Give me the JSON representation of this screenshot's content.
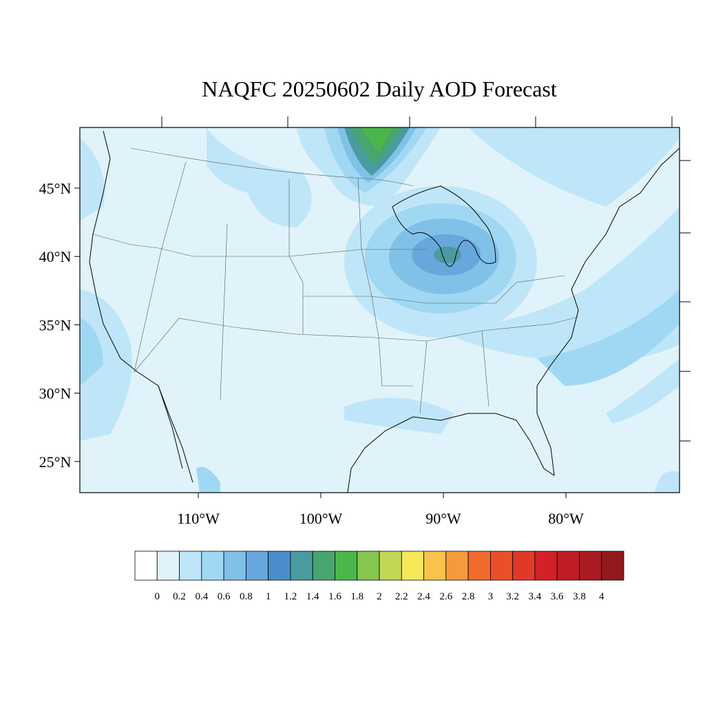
{
  "title": "NAQFC 20250602 Daily AOD Forecast",
  "lat_ticks": [
    {
      "value": 45,
      "label": "45°N"
    },
    {
      "value": 40,
      "label": "40°N"
    },
    {
      "value": 35,
      "label": "35°N"
    },
    {
      "value": 30,
      "label": "30°N"
    },
    {
      "value": 25,
      "label": "25°N"
    }
  ],
  "lon_ticks": [
    {
      "value": -110,
      "label": "110°W"
    },
    {
      "value": -100,
      "label": "100°W"
    },
    {
      "value": -90,
      "label": "90°W"
    },
    {
      "value": -80,
      "label": "80°W"
    }
  ],
  "colorbar": {
    "levels": [
      0,
      0.2,
      0.4,
      0.6,
      0.8,
      1,
      1.2,
      1.4,
      1.6,
      1.8,
      2,
      2.2,
      2.4,
      2.6,
      2.8,
      3,
      3.2,
      3.4,
      3.6,
      3.8,
      4
    ],
    "colors": [
      "#ffffff",
      "#e0f3fb",
      "#bfe6f8",
      "#a0d8f3",
      "#80c1e8",
      "#66a8dd",
      "#4a8dcc",
      "#4a9b9f",
      "#46a66e",
      "#4bb74a",
      "#86c54f",
      "#c3d757",
      "#f7e85a",
      "#f8c24c",
      "#f69a3e",
      "#f26b2e",
      "#ea4f2a",
      "#e0392a",
      "#d42028",
      "#c01c25",
      "#aa1a22",
      "#901a1e"
    ]
  }
}
